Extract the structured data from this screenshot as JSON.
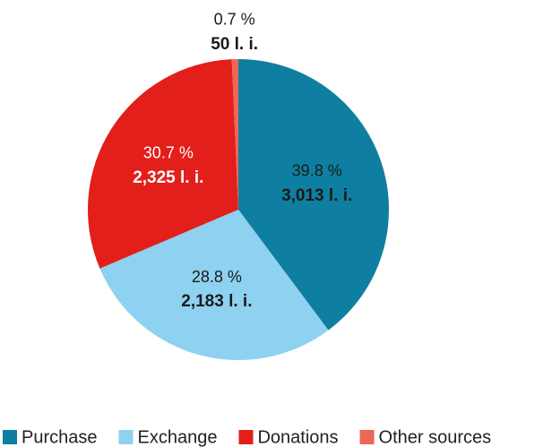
{
  "chart_data": {
    "type": "pie",
    "categories": [
      "Purchase",
      "Exchange",
      "Donations",
      "Other sources"
    ],
    "values": [
      39.8,
      28.8,
      30.7,
      0.7
    ],
    "value_labels": [
      "39.8 %",
      "28.8 %",
      "30.7 %",
      "0.7 %"
    ],
    "count_labels": [
      "3,013 l. i.",
      "2,183 l. i.",
      "2,325 l. i.",
      "50 l. i."
    ],
    "colors": [
      "#0e7fa0",
      "#8ed1f0",
      "#e21f1b",
      "#ee6656"
    ],
    "label_colors": [
      "#1a1a1a",
      "#1a1a1a",
      "#ffffff",
      "#1a1a1a"
    ],
    "legend": "bottom"
  }
}
